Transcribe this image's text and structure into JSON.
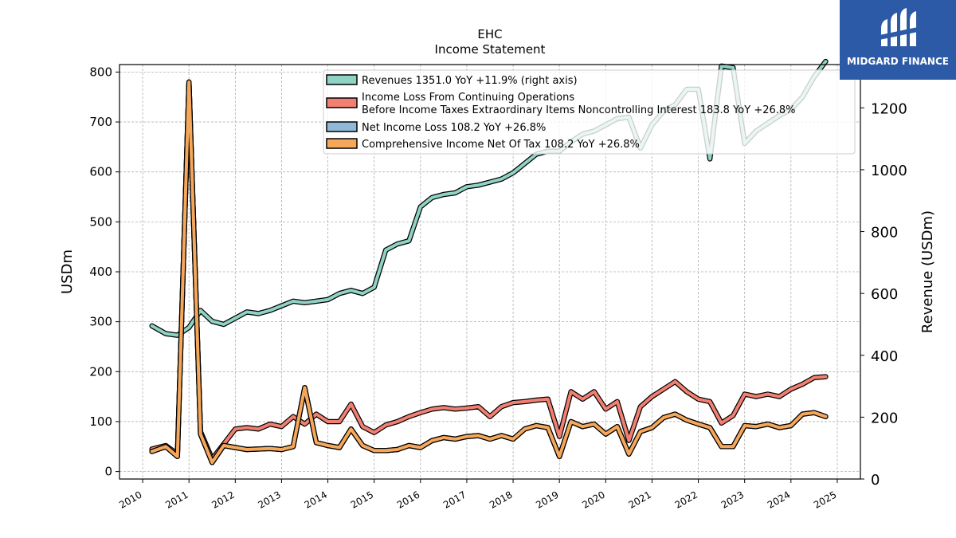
{
  "logo": {
    "text": "MIDGARD FINANCE",
    "color": "#2d5aa6"
  },
  "chart_data": {
    "type": "line",
    "title": "EHC",
    "subtitle": "Income Statement",
    "ylabel": "USDm",
    "ylabel_right": "Revenue (USDm)",
    "ylim": [
      -15,
      815
    ],
    "ylim_right": [
      0,
      1340
    ],
    "yticks": [
      0,
      100,
      200,
      300,
      400,
      500,
      600,
      700,
      800
    ],
    "yticks_right": [
      0,
      200,
      400,
      600,
      800,
      1000,
      1200
    ],
    "xlim": [
      2009.5,
      2025.5
    ],
    "xticks": [
      2010,
      2011,
      2012,
      2013,
      2014,
      2015,
      2016,
      2017,
      2018,
      2019,
      2020,
      2021,
      2022,
      2023,
      2024,
      2025
    ],
    "grid": true,
    "legend_position": "top",
    "x": [
      2010.2,
      2010.5,
      2010.75,
      2011.0,
      2011.25,
      2011.5,
      2011.75,
      2012.0,
      2012.25,
      2012.5,
      2012.75,
      2013.0,
      2013.25,
      2013.5,
      2013.75,
      2014.0,
      2014.25,
      2014.5,
      2014.75,
      2015.0,
      2015.25,
      2015.5,
      2015.75,
      2016.0,
      2016.25,
      2016.5,
      2016.75,
      2017.0,
      2017.25,
      2017.5,
      2017.75,
      2018.0,
      2018.25,
      2018.5,
      2018.75,
      2019.0,
      2019.25,
      2019.5,
      2019.75,
      2020.0,
      2020.25,
      2020.5,
      2020.75,
      2021.0,
      2021.25,
      2021.5,
      2021.75,
      2022.0,
      2022.25,
      2022.5,
      2022.75,
      2023.0,
      2023.25,
      2023.5,
      2023.75,
      2024.0,
      2024.25,
      2024.5,
      2024.75
    ],
    "series": [
      {
        "name": "Revenues",
        "legend": "Revenues  1351.0 YoY +11.9% (right axis)",
        "axis": "right",
        "color": "#8fd3c4",
        "values": [
          495,
          470,
          465,
          490,
          545,
          510,
          500,
          520,
          540,
          535,
          545,
          560,
          575,
          570,
          575,
          580,
          600,
          610,
          600,
          620,
          740,
          760,
          770,
          880,
          910,
          920,
          925,
          945,
          950,
          960,
          970,
          990,
          1020,
          1050,
          1060,
          1060,
          1090,
          1115,
          1125,
          1145,
          1165,
          1170,
          1070,
          1145,
          1190,
          1210,
          1260,
          1260,
          1035,
          1335,
          1330,
          1085,
          1125,
          1150,
          1175,
          1195,
          1235,
          1300,
          1350
        ]
      },
      {
        "name": "Income Loss From Continuing Operations Before Income Taxes Extraordinary Items Noncontrolling Interest",
        "legend": [
          "Income Loss From Continuing Operations",
          "Before Income Taxes Extraordinary Items Noncontrolling Interest  183.8 YoY +26.8%"
        ],
        "axis": "left",
        "color": "#f28072",
        "values": [
          45,
          52,
          35,
          780,
          80,
          25,
          55,
          85,
          88,
          85,
          95,
          90,
          110,
          95,
          115,
          100,
          100,
          135,
          90,
          78,
          93,
          100,
          110,
          118,
          125,
          128,
          125,
          127,
          130,
          110,
          130,
          138,
          140,
          143,
          145,
          70,
          160,
          145,
          160,
          125,
          140,
          62,
          130,
          150,
          165,
          180,
          160,
          145,
          140,
          97,
          112,
          155,
          150,
          155,
          150,
          165,
          175,
          188,
          190
        ]
      },
      {
        "name": "Net Income Loss",
        "legend": "Net Income Loss  108.2 YoY +26.8%",
        "axis": "left",
        "color": "#8fb8d9",
        "values": [
          40,
          50,
          30,
          780,
          75,
          18,
          52,
          48,
          44,
          45,
          46,
          44,
          50,
          168,
          58,
          52,
          48,
          85,
          52,
          42,
          42,
          44,
          52,
          48,
          62,
          68,
          65,
          70,
          72,
          65,
          72,
          65,
          85,
          92,
          88,
          30,
          100,
          90,
          95,
          75,
          90,
          35,
          80,
          88,
          108,
          115,
          103,
          95,
          88,
          50,
          50,
          92,
          90,
          95,
          88,
          92,
          115,
          118,
          110
        ]
      },
      {
        "name": "Comprehensive Income Net Of Tax",
        "legend": "Comprehensive Income Net Of Tax  108.2 YoY +26.8%",
        "axis": "left",
        "color": "#f5a85c",
        "values": [
          40,
          50,
          30,
          780,
          75,
          18,
          52,
          48,
          44,
          45,
          46,
          44,
          50,
          168,
          58,
          52,
          48,
          85,
          52,
          42,
          42,
          44,
          52,
          48,
          62,
          68,
          65,
          70,
          72,
          65,
          72,
          65,
          85,
          92,
          88,
          30,
          100,
          90,
          95,
          75,
          90,
          35,
          80,
          88,
          108,
          115,
          103,
          95,
          88,
          50,
          50,
          92,
          90,
          95,
          88,
          92,
          115,
          118,
          110
        ]
      }
    ]
  }
}
